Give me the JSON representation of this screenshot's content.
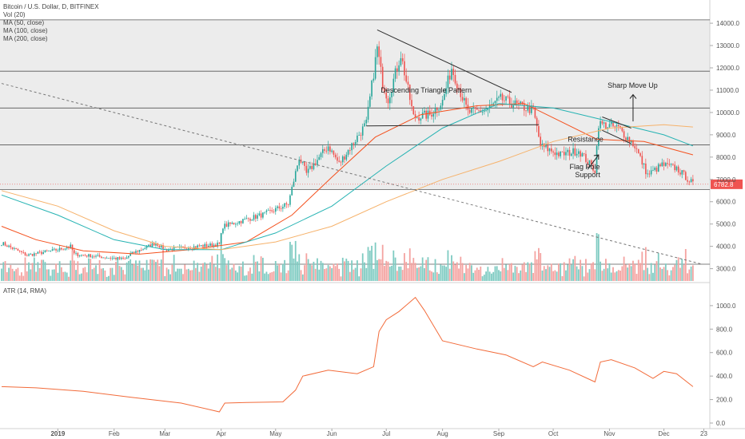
{
  "header": {
    "symbol_title": "Bitcoin / U.S. Dollar, D, BITFINEX",
    "indicators": [
      "Vol (20)",
      "MA (50, close)",
      "MA (100, close)",
      "MA (200, close)"
    ],
    "atr_label": "ATR (14, RMA)"
  },
  "colors": {
    "up": "#26a69a",
    "down": "#ef5350",
    "vol_up": "#7fcbc2",
    "vol_down": "#f4a3a1",
    "ma50": "#f4511e",
    "ma100": "#26b3b3",
    "ma200": "#f6b26b",
    "atr": "#f26b3a",
    "trend": "#2f2f2f",
    "hline": "#555555",
    "price_tag": "#ef5350",
    "shade": "#ececec"
  },
  "chart_data": [
    {
      "type": "candlestick",
      "title": "Bitcoin / U.S. Dollar, D, BITFINEX",
      "ylim": [
        2800,
        15000
      ],
      "y_ticks": [
        "3000.0",
        "4000.0",
        "5000.0",
        "6000.0",
        "7000.0",
        "8000.0",
        "9000.0",
        "10000.0",
        "11000.0",
        "12000.0",
        "13000.0",
        "14000.0",
        "15000.0"
      ],
      "x_ticks": [
        "2019",
        "Feb",
        "Mar",
        "Apr",
        "May",
        "Jun",
        "Jul",
        "Aug",
        "Sep",
        "Oct",
        "Nov",
        "Dec",
        "23"
      ],
      "last_price": "6782.8",
      "close_path": [
        {
          "date": "2018-12-01",
          "value": 4150
        },
        {
          "date": "2018-12-15",
          "value": 3600
        },
        {
          "date": "2019-01-01",
          "value": 3850
        },
        {
          "date": "2019-01-08",
          "value": 4000
        },
        {
          "date": "2019-01-10",
          "value": 3650
        },
        {
          "date": "2019-02-07",
          "value": 3420
        },
        {
          "date": "2019-02-10",
          "value": 3650
        },
        {
          "date": "2019-02-24",
          "value": 4150
        },
        {
          "date": "2019-03-01",
          "value": 3850
        },
        {
          "date": "2019-03-31",
          "value": 4100
        },
        {
          "date": "2019-04-02",
          "value": 4900
        },
        {
          "date": "2019-04-25",
          "value": 5450
        },
        {
          "date": "2019-05-08",
          "value": 5900
        },
        {
          "date": "2019-05-14",
          "value": 8000
        },
        {
          "date": "2019-05-18",
          "value": 7250
        },
        {
          "date": "2019-05-30",
          "value": 8500
        },
        {
          "date": "2019-06-05",
          "value": 7700
        },
        {
          "date": "2019-06-20",
          "value": 9500
        },
        {
          "date": "2019-06-26",
          "value": 12900
        },
        {
          "date": "2019-06-29",
          "value": 11300
        },
        {
          "date": "2019-07-02",
          "value": 10600
        },
        {
          "date": "2019-07-09",
          "value": 12600
        },
        {
          "date": "2019-07-16",
          "value": 9800
        },
        {
          "date": "2019-07-25",
          "value": 9900
        },
        {
          "date": "2019-08-01",
          "value": 10500
        },
        {
          "date": "2019-08-06",
          "value": 12000
        },
        {
          "date": "2019-08-15",
          "value": 10000
        },
        {
          "date": "2019-08-25",
          "value": 10100
        },
        {
          "date": "2019-09-02",
          "value": 10600
        },
        {
          "date": "2019-09-12",
          "value": 10300
        },
        {
          "date": "2019-09-20",
          "value": 10100
        },
        {
          "date": "2019-09-24",
          "value": 8500
        },
        {
          "date": "2019-10-05",
          "value": 8100
        },
        {
          "date": "2019-10-15",
          "value": 8300
        },
        {
          "date": "2019-10-24",
          "value": 7400
        },
        {
          "date": "2019-10-26",
          "value": 9500
        },
        {
          "date": "2019-11-06",
          "value": 9300
        },
        {
          "date": "2019-11-15",
          "value": 8500
        },
        {
          "date": "2019-11-22",
          "value": 7200
        },
        {
          "date": "2019-11-30",
          "value": 7650
        },
        {
          "date": "2019-12-08",
          "value": 7500
        },
        {
          "date": "2019-12-17",
          "value": 6800
        }
      ],
      "moving_averages": [
        {
          "name": "MA (50, close)",
          "points": [
            {
              "date": "2018-12-01",
              "value": 4900
            },
            {
              "date": "2018-12-20",
              "value": 4300
            },
            {
              "date": "2019-01-15",
              "value": 3800
            },
            {
              "date": "2019-02-15",
              "value": 3650
            },
            {
              "date": "2019-03-15",
              "value": 3850
            },
            {
              "date": "2019-04-15",
              "value": 4200
            },
            {
              "date": "2019-05-10",
              "value": 5400
            },
            {
              "date": "2019-06-01",
              "value": 7100
            },
            {
              "date": "2019-06-25",
              "value": 8900
            },
            {
              "date": "2019-07-20",
              "value": 9900
            },
            {
              "date": "2019-08-20",
              "value": 10300
            },
            {
              "date": "2019-09-15",
              "value": 10400
            },
            {
              "date": "2019-10-05",
              "value": 9600
            },
            {
              "date": "2019-10-25",
              "value": 8800
            },
            {
              "date": "2019-11-20",
              "value": 8700
            },
            {
              "date": "2019-12-17",
              "value": 8100
            }
          ]
        },
        {
          "name": "MA (100, close)",
          "points": [
            {
              "date": "2018-12-01",
              "value": 6300
            },
            {
              "date": "2019-01-01",
              "value": 5400
            },
            {
              "date": "2019-02-01",
              "value": 4300
            },
            {
              "date": "2019-03-01",
              "value": 3850
            },
            {
              "date": "2019-04-01",
              "value": 3850
            },
            {
              "date": "2019-05-01",
              "value": 4600
            },
            {
              "date": "2019-06-01",
              "value": 5800
            },
            {
              "date": "2019-07-01",
              "value": 7600
            },
            {
              "date": "2019-08-01",
              "value": 9300
            },
            {
              "date": "2019-09-01",
              "value": 10400
            },
            {
              "date": "2019-10-01",
              "value": 10200
            },
            {
              "date": "2019-11-01",
              "value": 9600
            },
            {
              "date": "2019-12-01",
              "value": 9000
            },
            {
              "date": "2019-12-17",
              "value": 8500
            }
          ]
        },
        {
          "name": "MA (200, close)",
          "points": [
            {
              "date": "2018-12-01",
              "value": 6500
            },
            {
              "date": "2019-01-01",
              "value": 5800
            },
            {
              "date": "2019-02-01",
              "value": 4700
            },
            {
              "date": "2019-03-01",
              "value": 4000
            },
            {
              "date": "2019-04-01",
              "value": 3850
            },
            {
              "date": "2019-05-01",
              "value": 4200
            },
            {
              "date": "2019-06-01",
              "value": 4900
            },
            {
              "date": "2019-07-01",
              "value": 6000
            },
            {
              "date": "2019-08-01",
              "value": 7000
            },
            {
              "date": "2019-09-01",
              "value": 7800
            },
            {
              "date": "2019-10-01",
              "value": 8700
            },
            {
              "date": "2019-11-01",
              "value": 9300
            },
            {
              "date": "2019-12-01",
              "value": 9450
            },
            {
              "date": "2019-12-17",
              "value": 9350
            }
          ]
        }
      ],
      "horizontal_levels": [
        3200,
        6550,
        8550,
        10200,
        11850,
        14150
      ],
      "trendlines": [
        {
          "from": {
            "date": "2019-06-26",
            "value": 13700
          },
          "to": {
            "date": "2019-09-08",
            "value": 10900
          },
          "style": "solid"
        },
        {
          "from": {
            "date": "2019-06-20",
            "value": 9400
          },
          "to": {
            "date": "2019-09-23",
            "value": 9450
          },
          "style": "solid"
        },
        {
          "from": {
            "date": "2018-12-01",
            "value": 11300
          },
          "to": {
            "date": "2019-12-22",
            "value": 3200
          },
          "style": "dashed"
        },
        {
          "from": {
            "date": "2019-10-28",
            "value": 9800
          },
          "to": {
            "date": "2019-11-13",
            "value": 9300
          },
          "style": "solid"
        },
        {
          "from": {
            "date": "2019-10-28",
            "value": 9200
          },
          "to": {
            "date": "2019-11-13",
            "value": 8600
          },
          "style": "solid"
        }
      ],
      "annotations": [
        {
          "text": "Descending Triangle Pattern",
          "date": "2019-06-28",
          "value": 10900
        },
        {
          "text": "Sharp Move Up",
          "date": "2019-10-31",
          "value": 11100
        },
        {
          "text": "Resistance",
          "date": "2019-10-09",
          "value": 8700
        },
        {
          "text": "Flag Pole",
          "date": "2019-10-10",
          "value": 7450
        },
        {
          "text": "Support",
          "date": "2019-10-13",
          "value": 7100
        }
      ]
    },
    {
      "type": "line",
      "title": "ATR (14, RMA)",
      "ylim": [
        -30,
        1130
      ],
      "y_ticks": [
        "0.0",
        "200.0",
        "400.0",
        "600.0",
        "800.0",
        "1000.0"
      ],
      "points": [
        {
          "date": "2018-12-01",
          "value": 310
        },
        {
          "date": "2018-12-20",
          "value": 300
        },
        {
          "date": "2019-01-15",
          "value": 270
        },
        {
          "date": "2019-02-10",
          "value": 220
        },
        {
          "date": "2019-03-10",
          "value": 170
        },
        {
          "date": "2019-03-31",
          "value": 95
        },
        {
          "date": "2019-04-03",
          "value": 170
        },
        {
          "date": "2019-04-15",
          "value": 175
        },
        {
          "date": "2019-05-05",
          "value": 180
        },
        {
          "date": "2019-05-12",
          "value": 280
        },
        {
          "date": "2019-05-16",
          "value": 400
        },
        {
          "date": "2019-05-30",
          "value": 450
        },
        {
          "date": "2019-06-15",
          "value": 420
        },
        {
          "date": "2019-06-24",
          "value": 480
        },
        {
          "date": "2019-06-27",
          "value": 780
        },
        {
          "date": "2019-07-01",
          "value": 880
        },
        {
          "date": "2019-07-08",
          "value": 950
        },
        {
          "date": "2019-07-17",
          "value": 1070
        },
        {
          "date": "2019-07-22",
          "value": 960
        },
        {
          "date": "2019-08-01",
          "value": 700
        },
        {
          "date": "2019-08-20",
          "value": 630
        },
        {
          "date": "2019-09-05",
          "value": 580
        },
        {
          "date": "2019-09-20",
          "value": 480
        },
        {
          "date": "2019-09-25",
          "value": 520
        },
        {
          "date": "2019-10-10",
          "value": 450
        },
        {
          "date": "2019-10-24",
          "value": 350
        },
        {
          "date": "2019-10-27",
          "value": 520
        },
        {
          "date": "2019-11-02",
          "value": 540
        },
        {
          "date": "2019-11-15",
          "value": 470
        },
        {
          "date": "2019-11-25",
          "value": 380
        },
        {
          "date": "2019-12-01",
          "value": 440
        },
        {
          "date": "2019-12-08",
          "value": 420
        },
        {
          "date": "2019-12-17",
          "value": 310
        }
      ]
    }
  ]
}
